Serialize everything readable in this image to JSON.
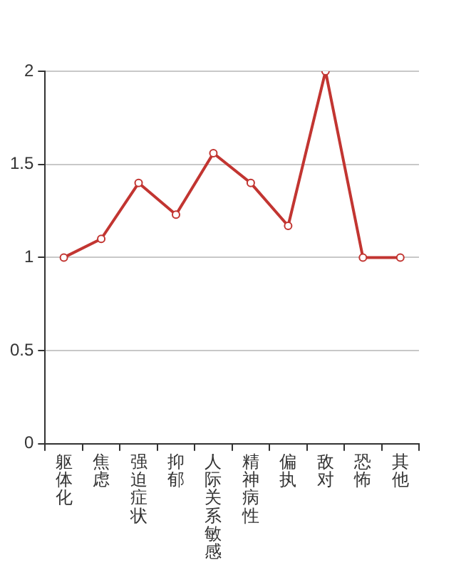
{
  "chart_data": {
    "type": "line",
    "categories": [
      "躯体化",
      "焦虑",
      "强迫症状",
      "抑郁",
      "人际关系敏感",
      "精神病性",
      "偏执",
      "敌对",
      "恐怖",
      "其他"
    ],
    "values": [
      1,
      1.1,
      1.4,
      1.23,
      1.56,
      1.4,
      1.17,
      2,
      1,
      1
    ],
    "color": "#c23531",
    "ylim": [
      0,
      2
    ],
    "yticks": [
      0,
      0.5,
      1,
      1.5,
      2
    ],
    "grid": "y",
    "marker": "circle",
    "line_style": "solid"
  }
}
